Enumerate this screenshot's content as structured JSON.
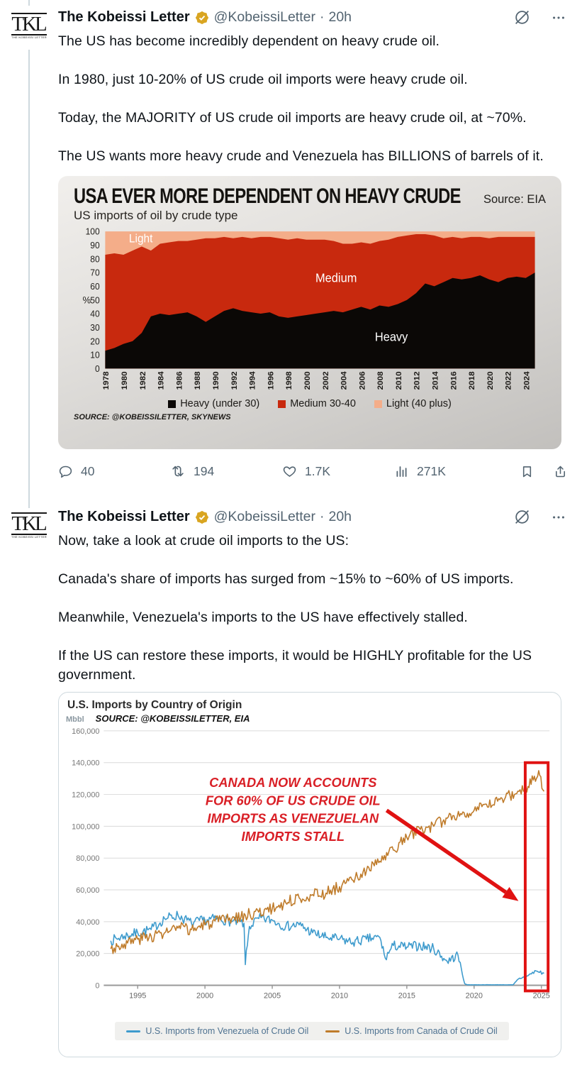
{
  "ui": {
    "separator": "·",
    "icons": {
      "grok": "grok-circle-slash",
      "more": "ellipsis",
      "reply": "reply-bubble",
      "repost": "repost-arrows",
      "like": "heart",
      "views": "analytics-bars",
      "bookmark": "bookmark",
      "share": "share-upload",
      "badge": "gold-verified-seal"
    },
    "colors": {
      "text": "#0f1419",
      "secondary": "#536471",
      "badge_gold": "#d9a521",
      "thread_line": "#cfd9de"
    }
  },
  "avatar": {
    "monogram": "TKL",
    "caption": "THE KOBEISSI LETTER"
  },
  "tweets": [
    {
      "author": "The Kobeissi Letter",
      "handle": "@KobeissiLetter",
      "time": "20h",
      "paragraphs": [
        "The US has become incredibly dependent on heavy crude oil.",
        "In 1980, just 10-20% of US crude oil imports were heavy crude oil.",
        "Today, the MAJORITY of US crude oil imports are heavy crude oil, at ~70%.",
        "The US wants more heavy crude and Venezuela has BILLIONS of barrels of it."
      ],
      "stats": {
        "replies": "40",
        "reposts": "194",
        "likes": "1.7K",
        "views": "271K"
      }
    },
    {
      "author": "The Kobeissi Letter",
      "handle": "@KobeissiLetter",
      "time": "20h",
      "paragraphs": [
        "Now, take a look at crude oil imports to the US:",
        "Canada's share of imports has surged from ~15% to ~60% of US imports.",
        "Meanwhile, Venezuela's imports to the US have effectively stalled.",
        "If the US can restore these imports, it would be HIGHLY profitable for the US government."
      ]
    }
  ],
  "chart_data": [
    {
      "type": "area",
      "title": "USA EVER MORE DEPENDENT ON HEAVY CRUDE",
      "source_right": "Source: EIA",
      "subtitle": "US imports of oil by crude type",
      "footer": "SOURCE: @KOBEISSILETTER, SKYNEWS",
      "ylabel": "%",
      "ylim": [
        0,
        100
      ],
      "stacked_total": 100,
      "y_ticks": [
        0,
        10,
        20,
        30,
        40,
        50,
        60,
        70,
        80,
        90,
        100
      ],
      "x_ticks": [
        1978,
        1980,
        1982,
        1984,
        1986,
        1988,
        1990,
        1992,
        1994,
        1996,
        1998,
        2000,
        2002,
        2004,
        2006,
        2008,
        2010,
        2012,
        2014,
        2016,
        2018,
        2020,
        2022,
        2024
      ],
      "years": [
        1978,
        1979,
        1980,
        1981,
        1982,
        1983,
        1984,
        1985,
        1986,
        1987,
        1988,
        1989,
        1990,
        1991,
        1992,
        1993,
        1994,
        1995,
        1996,
        1997,
        1998,
        1999,
        2000,
        2001,
        2002,
        2003,
        2004,
        2005,
        2006,
        2007,
        2008,
        2009,
        2010,
        2011,
        2012,
        2013,
        2014,
        2015,
        2016,
        2017,
        2018,
        2019,
        2020,
        2021,
        2022,
        2023,
        2024,
        2025
      ],
      "series": [
        {
          "name": "Heavy (under 30)",
          "color": "#0b0806",
          "values": [
            13,
            15,
            18,
            20,
            26,
            38,
            40,
            39,
            40,
            41,
            38,
            34,
            38,
            42,
            44,
            42,
            41,
            40,
            41,
            38,
            37,
            38,
            39,
            40,
            41,
            42,
            41,
            43,
            45,
            43,
            46,
            45,
            47,
            50,
            55,
            62,
            60,
            63,
            66,
            65,
            66,
            68,
            65,
            63,
            66,
            67,
            66,
            70
          ]
        },
        {
          "name": "Medium 30-40",
          "color": "#c8290e",
          "values": [
            70,
            69,
            65,
            66,
            63,
            48,
            51,
            53,
            53,
            52,
            56,
            61,
            57,
            54,
            51,
            54,
            54,
            56,
            55,
            57,
            57,
            57,
            55,
            54,
            53,
            51,
            50,
            48,
            47,
            48,
            47,
            49,
            49,
            47,
            43,
            36,
            37,
            32,
            30,
            30,
            30,
            28,
            30,
            33,
            30,
            29,
            30,
            26
          ]
        },
        {
          "name": "Light (40 plus)",
          "color": "#f4ad89",
          "values": [
            17,
            16,
            17,
            14,
            11,
            14,
            9,
            8,
            7,
            7,
            6,
            5,
            5,
            4,
            5,
            4,
            5,
            4,
            4,
            5,
            6,
            5,
            6,
            6,
            6,
            7,
            9,
            9,
            8,
            9,
            7,
            6,
            4,
            3,
            2,
            2,
            3,
            5,
            4,
            5,
            4,
            4,
            5,
            4,
            4,
            4,
            4,
            4
          ]
        }
      ],
      "area_labels": [
        {
          "text": "Light",
          "x": 1980.6,
          "y": 92,
          "size": 16
        },
        {
          "text": "Medium",
          "x": 2001,
          "y": 63,
          "size": 17
        },
        {
          "text": "Heavy",
          "x": 2007.5,
          "y": 20,
          "size": 17
        }
      ]
    },
    {
      "type": "line",
      "title": "U.S. Imports by Country of Origin",
      "unit_label": "Mbbl",
      "source": "SOURCE: @KOBEISSILETTER, EIA",
      "ylim": [
        0,
        160000
      ],
      "y_ticks": [
        0,
        20000,
        40000,
        60000,
        80000,
        100000,
        120000,
        140000,
        160000
      ],
      "x_ticks": [
        1995,
        2000,
        2005,
        2010,
        2015,
        2020,
        2025
      ],
      "x_range": [
        1993,
        2025.5
      ],
      "series": [
        {
          "name": "U.S. Imports from Venezuela of Crude Oil",
          "color": "#3e9bcd",
          "noise": 3200,
          "seed": 7,
          "points": [
            [
              1993,
              28000
            ],
            [
              1994,
              31000
            ],
            [
              1995,
              33000
            ],
            [
              1996,
              35000
            ],
            [
              1997,
              42000
            ],
            [
              1998,
              44000
            ],
            [
              1999,
              39000
            ],
            [
              2000,
              41000
            ],
            [
              2001,
              42000
            ],
            [
              2002,
              40000
            ],
            [
              2002.9,
              39000
            ],
            [
              2003,
              13000
            ],
            [
              2003.3,
              37000
            ],
            [
              2004,
              42000
            ],
            [
              2005,
              41000
            ],
            [
              2006,
              37000
            ],
            [
              2007,
              38000
            ],
            [
              2008,
              33000
            ],
            [
              2009,
              30000
            ],
            [
              2010,
              29000
            ],
            [
              2011,
              27000
            ],
            [
              2012,
              29000
            ],
            [
              2013,
              30000
            ],
            [
              2013.4,
              17000
            ],
            [
              2014,
              25000
            ],
            [
              2015,
              24000
            ],
            [
              2016,
              25000
            ],
            [
              2017,
              23000
            ],
            [
              2018,
              15000
            ],
            [
              2018.8,
              19000
            ],
            [
              2019.3,
              1000
            ],
            [
              2019.5,
              300
            ],
            [
              2022.9,
              300
            ],
            [
              2023.3,
              4000
            ],
            [
              2024,
              6000
            ],
            [
              2024.6,
              9000
            ],
            [
              2025.2,
              7500
            ]
          ]
        },
        {
          "name": "U.S. Imports from Canada of Crude Oil",
          "color": "#bf7b2a",
          "noise": 3800,
          "seed": 3,
          "points": [
            [
              1993,
              23000
            ],
            [
              1994,
              26000
            ],
            [
              1995,
              29000
            ],
            [
              1996,
              31000
            ],
            [
              1997,
              33000
            ],
            [
              1998,
              36000
            ],
            [
              1999,
              35000
            ],
            [
              2000,
              38000
            ],
            [
              2001,
              40000
            ],
            [
              2002,
              42000
            ],
            [
              2003,
              44000
            ],
            [
              2004,
              46000
            ],
            [
              2005,
              48000
            ],
            [
              2006,
              52000
            ],
            [
              2007,
              55000
            ],
            [
              2008,
              57000
            ],
            [
              2009,
              58000
            ],
            [
              2010,
              62000
            ],
            [
              2011,
              66000
            ],
            [
              2012,
              72000
            ],
            [
              2013,
              78000
            ],
            [
              2014,
              85000
            ],
            [
              2015,
              93000
            ],
            [
              2016,
              98000
            ],
            [
              2017,
              100000
            ],
            [
              2018,
              105000
            ],
            [
              2019,
              108000
            ],
            [
              2020,
              110000
            ],
            [
              2021,
              112000
            ],
            [
              2022,
              118000
            ],
            [
              2023,
              120000
            ],
            [
              2024,
              125000
            ],
            [
              2024.8,
              135000
            ],
            [
              2025.2,
              122000
            ]
          ]
        }
      ],
      "annotation": {
        "lines": [
          "CANADA NOW ACCOUNTS",
          "FOR 60% OF US CRUDE OIL",
          "IMPORTS AS VENEZUELAN",
          "IMPORTS STALL"
        ],
        "color": "#d91f26"
      },
      "arrow": {
        "from": [
          2013.5,
          110000
        ],
        "to": [
          2023.3,
          53000
        ],
        "color": "#e01212"
      },
      "highlight_box": {
        "x0": 2023.8,
        "x1": 2025.5,
        "y0": 0,
        "y1": 140000,
        "color": "#e01212"
      }
    }
  ]
}
